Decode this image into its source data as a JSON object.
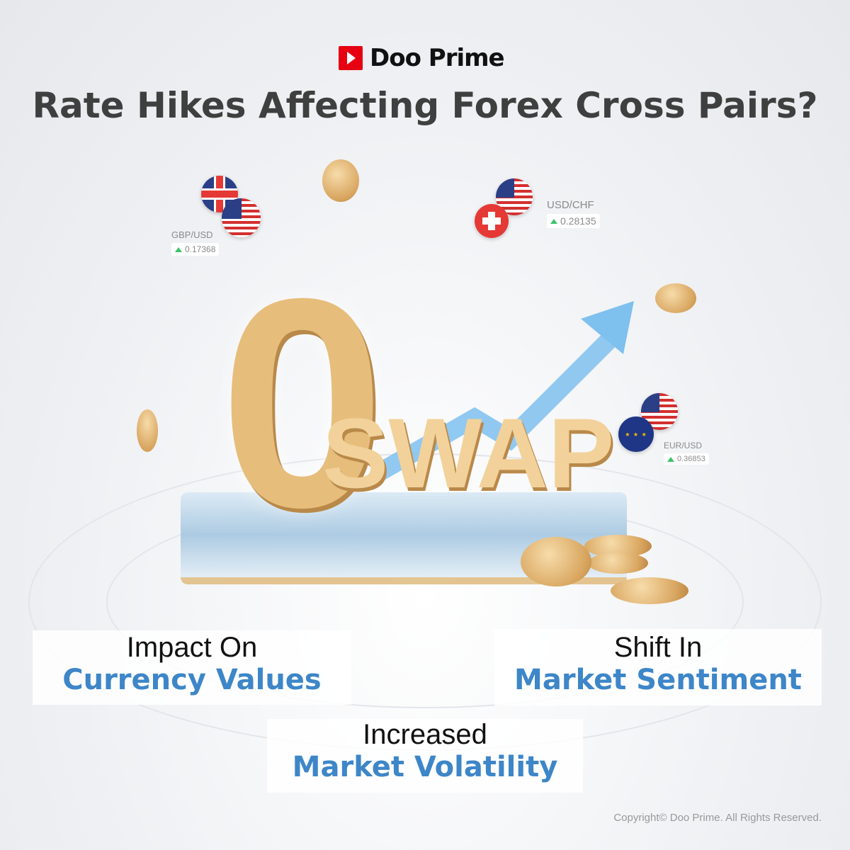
{
  "brand": {
    "name": "Doo Prime"
  },
  "title": "Rate Hikes Affecting Forex Cross Pairs?",
  "pairs": [
    {
      "label": "GBP/USD",
      "value": "0.17368",
      "trend": "up"
    },
    {
      "label": "USD/CHF",
      "value": "0.28135",
      "trend": "up"
    },
    {
      "label": "EUR/USD",
      "value": "0.36853",
      "trend": "up"
    }
  ],
  "hero": {
    "zero": "0",
    "swap": "SWAP"
  },
  "points": [
    {
      "line1": "Impact On",
      "line2": "Currency Values"
    },
    {
      "line1": "Shift In",
      "line2": "Market Sentiment"
    },
    {
      "line1": "Increased",
      "line2": "Market Volatility"
    }
  ],
  "copyright": "Copyright© Doo Prime. All Rights Reserved.",
  "colors": {
    "accent": "#3d86c8",
    "brand": "#e60012",
    "gold": "#e7bd7b",
    "up": "#3cc36b"
  }
}
